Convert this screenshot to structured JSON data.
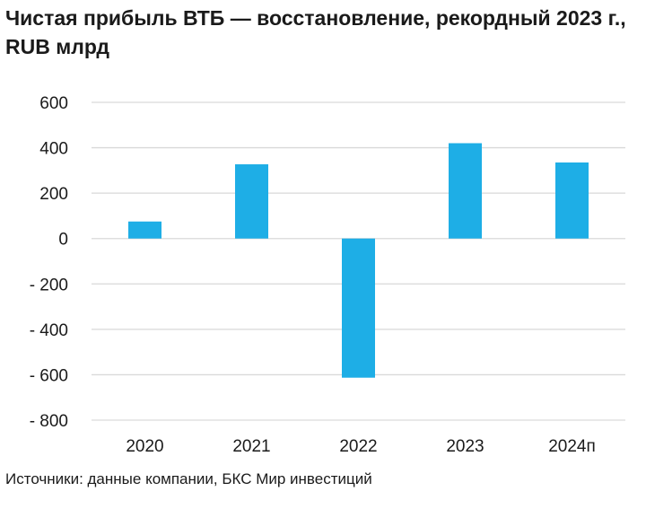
{
  "chart_data": {
    "type": "bar",
    "title": "Чистая прибыль ВТБ — восстановление, рекордный 2023 г., RUB млрд",
    "xlabel": "",
    "ylabel": "",
    "categories": [
      "2020",
      "2021",
      "2022",
      "2023",
      "2024п"
    ],
    "values": [
      75,
      327,
      -613,
      420,
      335
    ],
    "ylim": [
      -800,
      600
    ],
    "yticks": [
      600,
      400,
      200,
      0,
      -200,
      -400,
      -600,
      -800
    ],
    "ytick_labels": [
      "600",
      "400",
      "200",
      "0",
      "- 200",
      "- 400",
      "- 600",
      "- 800"
    ],
    "grid": true,
    "legend": "none",
    "bar_color": "#1eaee6",
    "grid_color": "#d9d9d9"
  },
  "source_text": "Источники: данные компании, БКС Мир инвестиций"
}
